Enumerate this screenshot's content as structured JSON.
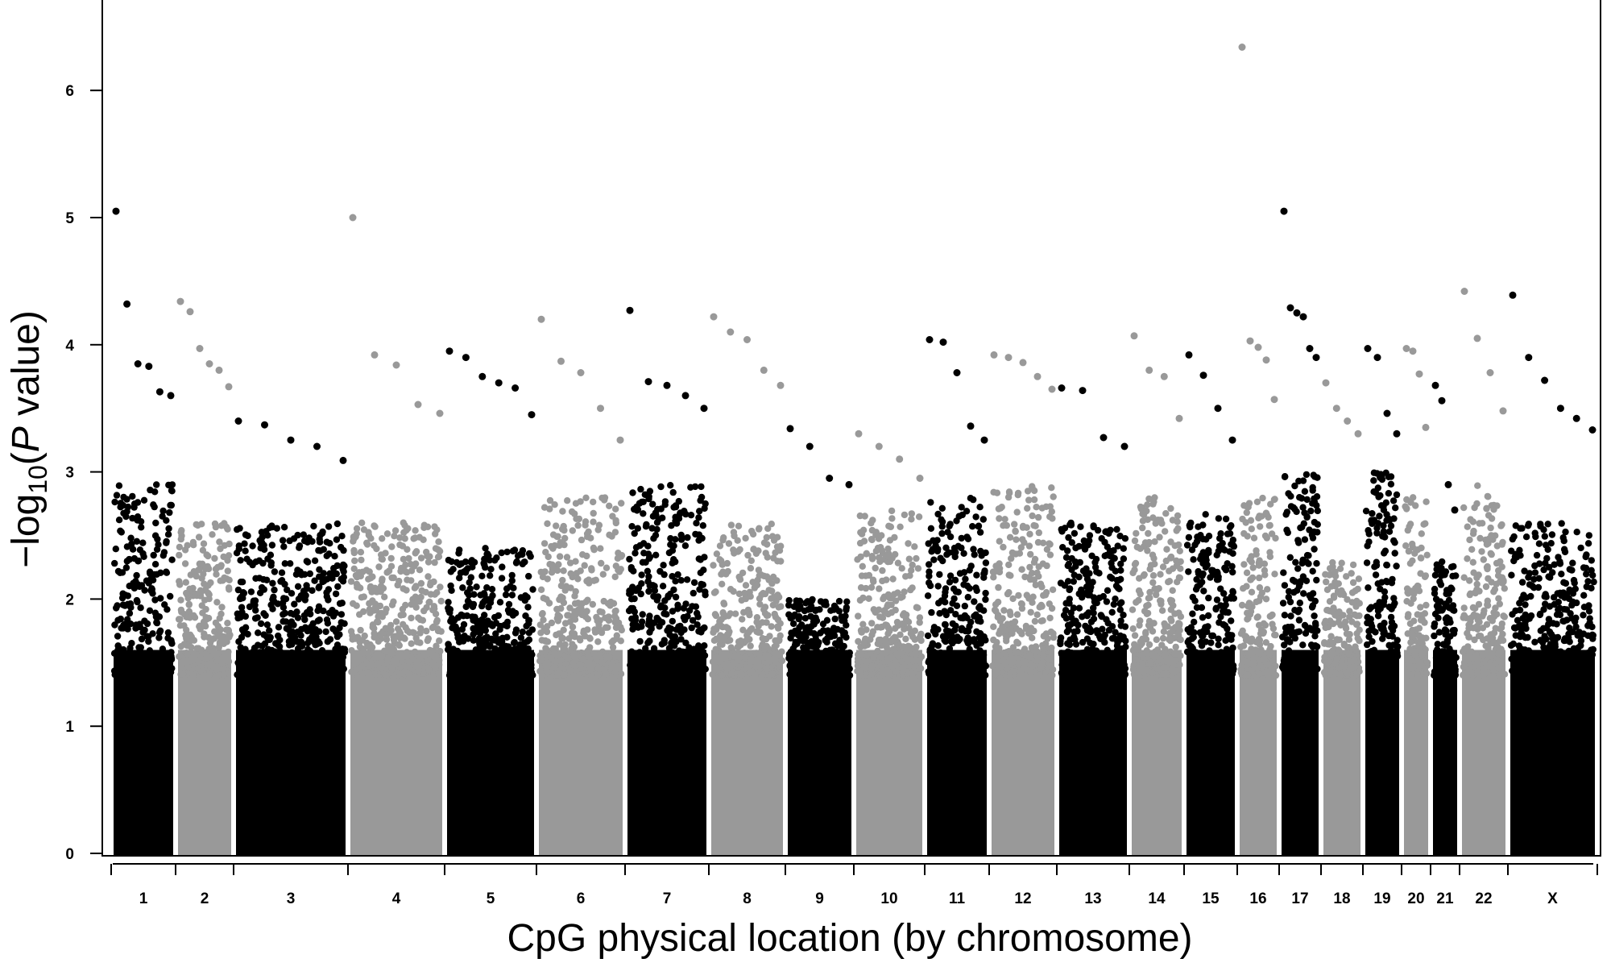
{
  "chart_data": {
    "type": "scatter",
    "subtype": "manhattan",
    "title": "",
    "xlabel": "CpG physical location (by chromosome)",
    "ylabel": {
      "prefix": "−log",
      "subscript": "10",
      "open": "(",
      "italic": "P",
      "rest": " value)"
    },
    "ylim": [
      0,
      6.6
    ],
    "y_ticks": [
      0,
      1,
      2,
      3,
      4,
      5,
      6
    ],
    "grid": false,
    "legend": "none",
    "colors": {
      "odd": "#000000",
      "even": "#999999"
    },
    "categories": [
      "1",
      "2",
      "3",
      "4",
      "5",
      "6",
      "7",
      "8",
      "9",
      "10",
      "11",
      "12",
      "13",
      "14",
      "15",
      "16",
      "17",
      "18",
      "19",
      "20",
      "21",
      "22",
      "X"
    ],
    "chromosomes": [
      {
        "label": "1",
        "band": 2.9,
        "peaks": [
          5.05,
          4.32,
          3.85,
          3.83,
          3.63,
          3.6
        ]
      },
      {
        "label": "2",
        "band": 2.6,
        "peaks": [
          4.34,
          4.26,
          3.97,
          3.85,
          3.8,
          3.67
        ]
      },
      {
        "label": "3",
        "band": 2.6,
        "peaks": [
          3.4,
          3.37,
          3.25,
          3.2,
          3.09
        ]
      },
      {
        "label": "4",
        "band": 2.6,
        "peaks": [
          5.0,
          3.92,
          3.84,
          3.53,
          3.46
        ]
      },
      {
        "label": "5",
        "band": 2.4,
        "peaks": [
          3.95,
          3.9,
          3.75,
          3.7,
          3.66,
          3.45
        ]
      },
      {
        "label": "6",
        "band": 2.8,
        "peaks": [
          4.2,
          3.87,
          3.78,
          3.5,
          3.25
        ]
      },
      {
        "label": "7",
        "band": 2.9,
        "peaks": [
          4.27,
          3.71,
          3.68,
          3.6,
          3.5
        ]
      },
      {
        "label": "8",
        "band": 2.6,
        "peaks": [
          4.22,
          4.1,
          4.04,
          3.8,
          3.68
        ]
      },
      {
        "label": "9",
        "band": 2.0,
        "peaks": [
          3.34,
          3.2,
          2.95,
          2.9
        ]
      },
      {
        "label": "10",
        "band": 2.7,
        "peaks": [
          3.3,
          3.2,
          3.1,
          2.95
        ]
      },
      {
        "label": "11",
        "band": 2.8,
        "peaks": [
          4.04,
          4.02,
          3.78,
          3.36,
          3.25
        ]
      },
      {
        "label": "12",
        "band": 2.9,
        "peaks": [
          3.92,
          3.9,
          3.86,
          3.75,
          3.65
        ]
      },
      {
        "label": "13",
        "band": 2.6,
        "peaks": [
          3.66,
          3.64,
          3.27,
          3.2
        ]
      },
      {
        "label": "14",
        "band": 2.8,
        "peaks": [
          4.07,
          3.8,
          3.75,
          3.42
        ]
      },
      {
        "label": "15",
        "band": 2.7,
        "peaks": [
          3.92,
          3.76,
          3.5,
          3.25
        ]
      },
      {
        "label": "16",
        "band": 2.8,
        "peaks": [
          6.34,
          4.03,
          3.98,
          3.88,
          3.57
        ]
      },
      {
        "label": "17",
        "band": 3.0,
        "peaks": [
          5.05,
          4.29,
          4.25,
          4.22,
          3.97,
          3.9
        ]
      },
      {
        "label": "18",
        "band": 2.3,
        "peaks": [
          3.7,
          3.5,
          3.4,
          3.3
        ]
      },
      {
        "label": "19",
        "band": 3.0,
        "peaks": [
          3.97,
          3.9,
          3.46,
          3.3
        ]
      },
      {
        "label": "20",
        "band": 2.8,
        "peaks": [
          3.97,
          3.95,
          3.77,
          3.35
        ]
      },
      {
        "label": "21",
        "band": 2.3,
        "peaks": [
          3.68,
          3.56,
          2.9,
          2.7
        ]
      },
      {
        "label": "22",
        "band": 2.9,
        "peaks": [
          4.42,
          4.05,
          3.78,
          3.48
        ]
      },
      {
        "label": "X",
        "band": 2.6,
        "peaks": [
          4.39,
          3.9,
          3.72,
          3.5,
          3.42,
          3.33
        ]
      }
    ]
  }
}
